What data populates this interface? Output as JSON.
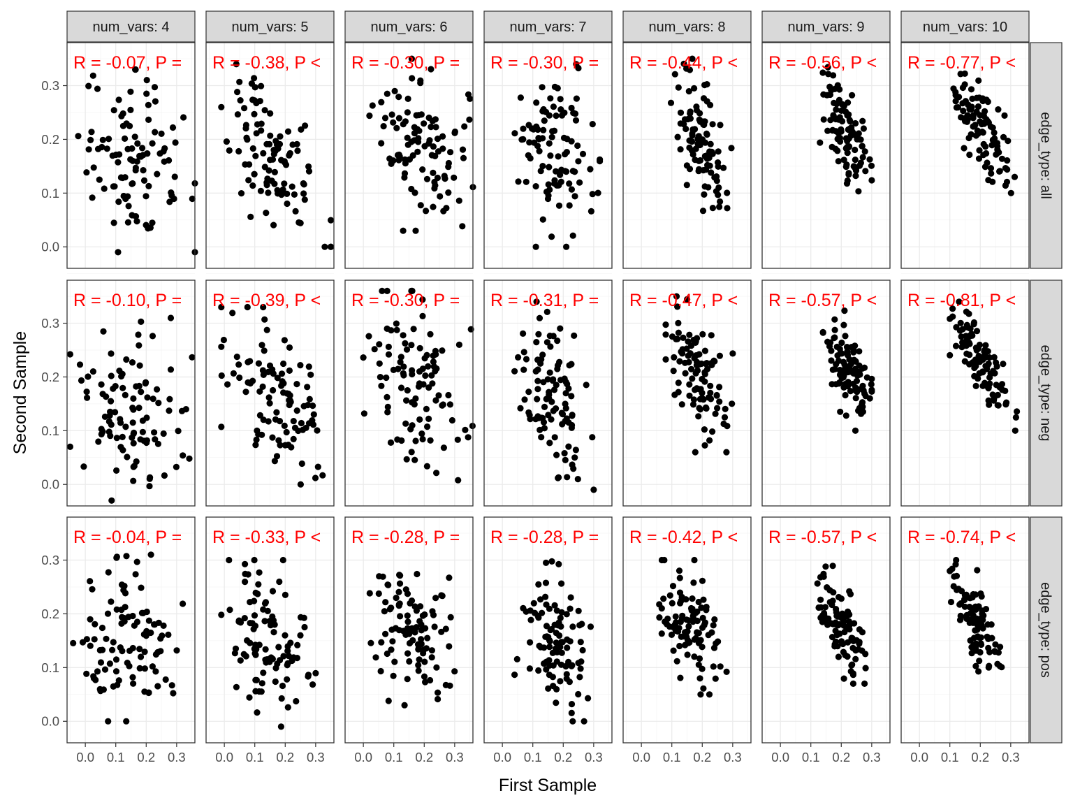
{
  "chart_data": {
    "type": "scatter",
    "xlabel": "First Sample",
    "ylabel": "Second Sample",
    "col_facets": [
      "num_vars: 4",
      "num_vars: 5",
      "num_vars: 6",
      "num_vars: 7",
      "num_vars: 8",
      "num_vars: 9",
      "num_vars: 10"
    ],
    "row_facets": [
      "edge_type: all",
      "edge_type: neg",
      "edge_type: pos"
    ],
    "xlim": [
      -0.06,
      0.36
    ],
    "ylim": [
      -0.04,
      0.38
    ],
    "x_ticks": [
      0.0,
      0.1,
      0.2,
      0.3
    ],
    "y_ticks": [
      0.0,
      0.1,
      0.2,
      0.3
    ],
    "x_tick_labels": [
      "0.0",
      "0.1",
      "0.2",
      "0.3"
    ],
    "y_tick_labels": [
      "0.0",
      "0.1",
      "0.2",
      "0.3"
    ],
    "grid": true,
    "point_color": "#000000",
    "annotation_color": "#ff0000",
    "point_count_per_panel": 100,
    "annotations": [
      [
        "R = -0.07, P =",
        "R = -0.38, P <",
        "R = -0.30, P =",
        "R = -0.30, P =",
        "R = -0.44, P <",
        "R = -0.56, P <",
        "R = -0.77, P <"
      ],
      [
        "R = -0.10, P =",
        "R = -0.39, P <",
        "R = -0.30, P =",
        "R = -0.31, P =",
        "R = -0.47, P <",
        "R = -0.57, P <",
        "R = -0.81, P <"
      ],
      [
        "R = -0.04, P =",
        "R = -0.33, P <",
        "R = -0.28, P =",
        "R = -0.28, P =",
        "R = -0.42, P <",
        "R = -0.57, P <",
        "R = -0.74, P <"
      ]
    ],
    "correlations": [
      [
        -0.07,
        -0.38,
        -0.3,
        -0.3,
        -0.44,
        -0.56,
        -0.77
      ],
      [
        -0.1,
        -0.39,
        -0.3,
        -0.31,
        -0.47,
        -0.57,
        -0.81
      ],
      [
        -0.04,
        -0.33,
        -0.28,
        -0.28,
        -0.42,
        -0.57,
        -0.74
      ]
    ],
    "x_ranges": [
      [
        [
          -0.03,
          0.36
        ],
        [
          -0.01,
          0.35
        ],
        [
          0.02,
          0.36
        ],
        [
          0.04,
          0.32
        ],
        [
          0.08,
          0.3
        ],
        [
          0.13,
          0.3
        ],
        [
          0.08,
          0.32
        ]
      ],
      [
        [
          -0.05,
          0.36
        ],
        [
          -0.01,
          0.35
        ],
        [
          0.0,
          0.36
        ],
        [
          0.04,
          0.3
        ],
        [
          0.08,
          0.3
        ],
        [
          0.14,
          0.3
        ],
        [
          0.1,
          0.32
        ]
      ],
      [
        [
          -0.04,
          0.32
        ],
        [
          -0.01,
          0.3
        ],
        [
          0.02,
          0.31
        ],
        [
          0.04,
          0.3
        ],
        [
          0.04,
          0.28
        ],
        [
          0.12,
          0.28
        ],
        [
          0.1,
          0.27
        ]
      ]
    ],
    "y_ranges": [
      [
        [
          -0.01,
          0.33
        ],
        [
          0.0,
          0.34
        ],
        [
          0.03,
          0.35
        ],
        [
          0.0,
          0.34
        ],
        [
          0.06,
          0.35
        ],
        [
          0.09,
          0.34
        ],
        [
          0.1,
          0.34
        ]
      ],
      [
        [
          -0.03,
          0.31
        ],
        [
          0.0,
          0.33
        ],
        [
          0.0,
          0.36
        ],
        [
          -0.01,
          0.34
        ],
        [
          0.06,
          0.35
        ],
        [
          0.1,
          0.33
        ],
        [
          0.1,
          0.34
        ]
      ],
      [
        [
          0.0,
          0.31
        ],
        [
          -0.01,
          0.3
        ],
        [
          0.03,
          0.31
        ],
        [
          0.0,
          0.3
        ],
        [
          0.05,
          0.3
        ],
        [
          0.07,
          0.29
        ],
        [
          0.08,
          0.3
        ]
      ]
    ]
  }
}
